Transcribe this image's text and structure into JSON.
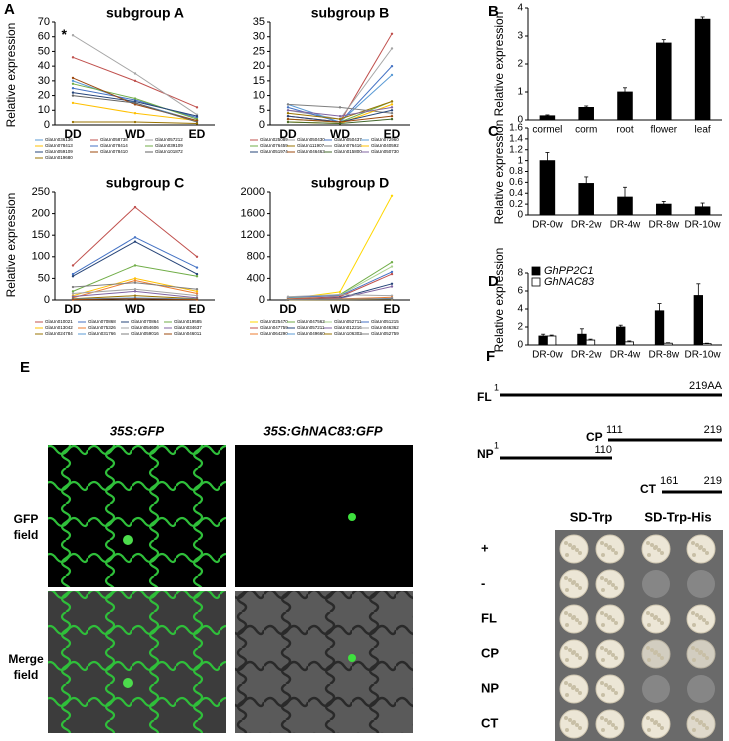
{
  "panel_labels": [
    "A",
    "B",
    "C",
    "D",
    "E",
    "F"
  ],
  "chart_data": [
    {
      "type": "line",
      "title": "subgroup A",
      "y_label": "Relative expression",
      "annotation": "*",
      "categories": [
        "DD",
        "WD",
        "ED"
      ],
      "ylim": [
        0,
        70
      ],
      "yticks": [
        0,
        10,
        20,
        30,
        40,
        50,
        60,
        70
      ],
      "series": [
        {
          "name": "GlaUn036136",
          "color": "#5b9bd5",
          "values": [
            30,
            15,
            3
          ]
        },
        {
          "name": "GlaUn058738",
          "color": "#c0504d",
          "values": [
            46,
            30,
            12
          ]
        },
        {
          "name": "GlaUn057212",
          "color": "#a5a5a5",
          "values": [
            61,
            35,
            7
          ]
        },
        {
          "name": "GlaUn078413",
          "color": "#ffc000",
          "values": [
            15,
            8,
            3
          ]
        },
        {
          "name": "GlaUn078414",
          "color": "#4472c4",
          "values": [
            25,
            17,
            5
          ]
        },
        {
          "name": "GlaUn039109",
          "color": "#70ad47",
          "values": [
            28,
            18,
            4
          ]
        },
        {
          "name": "GlaUn059109",
          "color": "#264478",
          "values": [
            22,
            16,
            6
          ]
        },
        {
          "name": "GlaUn078410",
          "color": "#9e480e",
          "values": [
            32,
            14,
            3
          ]
        },
        {
          "name": "GlaUn101872",
          "color": "#636363",
          "values": [
            20,
            15,
            2
          ]
        },
        {
          "name": "GlaUn019680",
          "color": "#997300",
          "values": [
            2,
            2,
            1
          ]
        }
      ]
    },
    {
      "type": "line",
      "title": "subgroup B",
      "categories": [
        "DD",
        "WD",
        "ED"
      ],
      "ylim": [
        0,
        35
      ],
      "yticks": [
        0,
        5,
        10,
        15,
        20,
        25,
        30,
        35
      ],
      "series": [
        {
          "name": "GlaUn025089",
          "color": "#c0504d",
          "values": [
            3,
            1,
            31
          ]
        },
        {
          "name": "GlaUn050430",
          "color": "#a5a5a5",
          "values": [
            5,
            2,
            26
          ]
        },
        {
          "name": "GlaUn050437",
          "color": "#4472c4",
          "values": [
            6,
            1,
            20
          ]
        },
        {
          "name": "GlaUn072960",
          "color": "#5b9bd5",
          "values": [
            7,
            1,
            17
          ]
        },
        {
          "name": "GlaUn076459",
          "color": "#70ad47",
          "values": [
            2,
            1,
            8
          ]
        },
        {
          "name": "GlaUn111907",
          "color": "#997300",
          "values": [
            4,
            2,
            8
          ]
        },
        {
          "name": "GlaUn076416",
          "color": "#7f7f7f",
          "values": [
            7,
            6,
            4
          ]
        },
        {
          "name": "GlaUn040592",
          "color": "#ffc000",
          "values": [
            1,
            0.5,
            7
          ]
        },
        {
          "name": "GlaUn051974",
          "color": "#264478",
          "values": [
            3,
            1,
            5
          ]
        },
        {
          "name": "GlaUn046463",
          "color": "#9e480e",
          "values": [
            2,
            1,
            3
          ]
        },
        {
          "name": "GlaUn015800",
          "color": "#43682b",
          "values": [
            1,
            0.5,
            2
          ]
        },
        {
          "name": "GlaUn050730",
          "color": "#8064a2",
          "values": [
            5,
            3,
            6
          ]
        }
      ]
    },
    {
      "type": "line",
      "title": "subgroup C",
      "y_label": "Relative expression",
      "categories": [
        "DD",
        "WD",
        "ED"
      ],
      "ylim": [
        0,
        250
      ],
      "yticks": [
        0,
        50,
        100,
        150,
        200,
        250
      ],
      "series": [
        {
          "name": "GlaUn010021",
          "color": "#c0504d",
          "values": [
            80,
            215,
            100
          ]
        },
        {
          "name": "GlaUn070868",
          "color": "#4472c4",
          "values": [
            60,
            145,
            75
          ]
        },
        {
          "name": "GlaUn070864",
          "color": "#264478",
          "values": [
            55,
            135,
            60
          ]
        },
        {
          "name": "GlaUn019585",
          "color": "#70ad47",
          "values": [
            20,
            80,
            55
          ]
        },
        {
          "name": "GlaUn013042",
          "color": "#ffc000",
          "values": [
            10,
            50,
            20
          ]
        },
        {
          "name": "GlaUn075326",
          "color": "#ed7d31",
          "values": [
            5,
            45,
            15
          ]
        },
        {
          "name": "GlaUn054606",
          "color": "#a5a5a5",
          "values": [
            15,
            25,
            10
          ]
        },
        {
          "name": "GlaUn034637",
          "color": "#8064a2",
          "values": [
            8,
            20,
            5
          ]
        },
        {
          "name": "GlaUn024784",
          "color": "#997300",
          "values": [
            3,
            10,
            3
          ]
        },
        {
          "name": "GlaUn031766",
          "color": "#5b9bd5",
          "values": [
            2,
            5,
            2
          ]
        },
        {
          "name": "GlaUn059016",
          "color": "#7f7f7f",
          "values": [
            30,
            40,
            25
          ]
        },
        {
          "name": "GlaUn046011",
          "color": "#9e480e",
          "values": [
            1,
            3,
            1
          ]
        }
      ]
    },
    {
      "type": "line",
      "title": "subgroup D",
      "categories": [
        "DD",
        "WD",
        "ED"
      ],
      "ylim": [
        0,
        2000
      ],
      "yticks": [
        0,
        400,
        800,
        1200,
        1600,
        2000
      ],
      "series": [
        {
          "name": "GlaUn025470",
          "color": "#ffd700",
          "values": [
            20,
            150,
            1930
          ]
        },
        {
          "name": "GlaUn047562",
          "color": "#70ad47",
          "values": [
            40,
            100,
            700
          ]
        },
        {
          "name": "GlaUn052711",
          "color": "#a9d18e",
          "values": [
            30,
            90,
            620
          ]
        },
        {
          "name": "GlaUn051215",
          "color": "#4472c4",
          "values": [
            50,
            80,
            520
          ]
        },
        {
          "name": "GlaUn047759",
          "color": "#c0504d",
          "values": [
            20,
            60,
            480
          ]
        },
        {
          "name": "GlaUn057211",
          "color": "#264478",
          "values": [
            10,
            40,
            300
          ]
        },
        {
          "name": "GlaUn012216",
          "color": "#8064a2",
          "values": [
            5,
            30,
            250
          ]
        },
        {
          "name": "GlaUn046362",
          "color": "#a5a5a5",
          "values": [
            60,
            100,
            80
          ]
        },
        {
          "name": "GlaUn064290",
          "color": "#ed7d31",
          "values": [
            15,
            20,
            50
          ]
        },
        {
          "name": "GlaUn049660",
          "color": "#5b9bd5",
          "values": [
            5,
            10,
            30
          ]
        },
        {
          "name": "GlaUn106302",
          "color": "#997300",
          "values": [
            3,
            5,
            15
          ]
        },
        {
          "name": "GlaUn052759",
          "color": "#7f7f7f",
          "values": [
            8,
            12,
            20
          ]
        }
      ]
    },
    {
      "type": "bar",
      "y_label": "Relative expression",
      "color": "#000000",
      "categories": [
        "cormel",
        "corm",
        "root",
        "flower",
        "leaf"
      ],
      "values": [
        0.15,
        0.45,
        1.0,
        2.75,
        3.6
      ],
      "errors": [
        0.03,
        0.05,
        0.15,
        0.12,
        0.08
      ],
      "ylim": [
        0,
        4
      ],
      "yticks": [
        0,
        1,
        2,
        3,
        4
      ]
    },
    {
      "type": "bar",
      "y_label": "Relative expression",
      "color": "#000000",
      "categories": [
        "DR-0w",
        "DR-2w",
        "DR-4w",
        "DR-8w",
        "DR-10w"
      ],
      "values": [
        1.0,
        0.58,
        0.33,
        0.2,
        0.15
      ],
      "errors": [
        0.15,
        0.12,
        0.18,
        0.05,
        0.07
      ],
      "ylim": [
        0,
        1.6
      ],
      "yticks": [
        0,
        0.2,
        0.4,
        0.6,
        0.8,
        1,
        1.2,
        1.4,
        1.6
      ]
    },
    {
      "type": "bar",
      "y_label": "Relative expression",
      "legend": "top-left",
      "categories": [
        "DR-0w",
        "DR-2w",
        "DR-4w",
        "DR-8w",
        "DR-10w"
      ],
      "ylim": [
        0,
        8
      ],
      "yticks": [
        0,
        2,
        4,
        6,
        8
      ],
      "series": [
        {
          "name": "GhPP2C1",
          "color": "#000000",
          "values": [
            1.0,
            1.2,
            2.0,
            3.8,
            5.5
          ],
          "errors": [
            0.2,
            0.6,
            0.2,
            0.8,
            1.3
          ]
        },
        {
          "name": "GhNAC83",
          "color": "#ffffff",
          "values": [
            1.0,
            0.55,
            0.35,
            0.2,
            0.15
          ],
          "errors": [
            0.1,
            0.1,
            0.1,
            0.05,
            0.05
          ]
        }
      ]
    }
  ],
  "panel_e": {
    "columns": [
      "35S:GFP",
      "35S:GhNAC83:GFP"
    ],
    "rows": [
      [
        "GFP",
        "field"
      ],
      [
        "Merge",
        "field"
      ]
    ]
  },
  "panel_f": {
    "constructs": [
      {
        "name": "FL",
        "start": "1",
        "end": "219AA"
      },
      {
        "name": "CP",
        "start": "111",
        "end": "219"
      },
      {
        "name": "NP",
        "start": "1",
        "end": "110"
      },
      {
        "name": "CT",
        "start": "161",
        "end": "219"
      }
    ],
    "media": [
      "SD-Trp",
      "SD-Trp-His"
    ],
    "rows": [
      "+",
      "-",
      "FL",
      "CP",
      "NP",
      "CT"
    ]
  }
}
